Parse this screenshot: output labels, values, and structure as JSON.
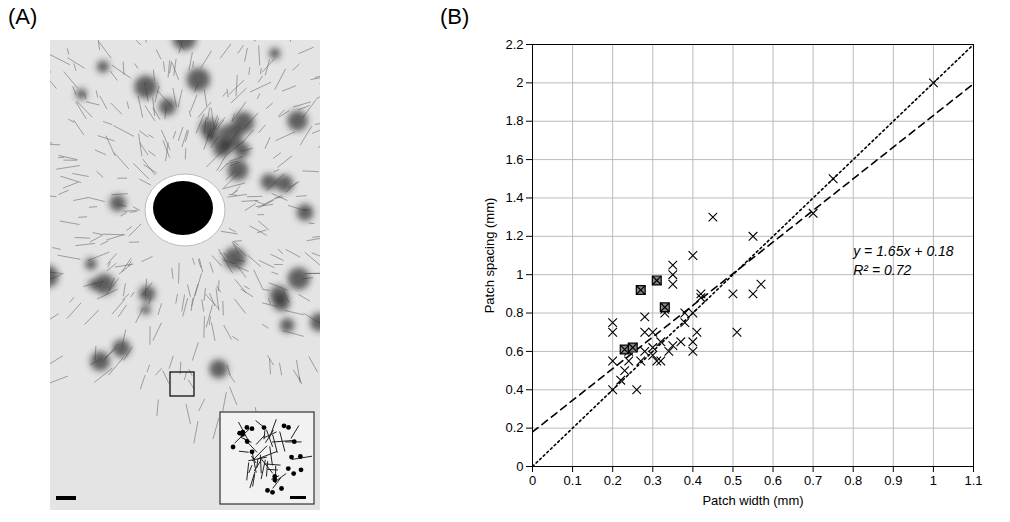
{
  "panel_labels": [
    "(A)",
    "(B)"
  ],
  "chart_data": {
    "type": "scatter",
    "x_label": "Patch width (mm)",
    "y_label": "Patch spacing (mm)",
    "xlim": [
      0,
      1.1
    ],
    "ylim": [
      0,
      2.2
    ],
    "xticks": [
      0,
      0.1,
      0.2,
      0.3,
      0.4,
      0.5,
      0.6,
      0.7,
      0.8,
      0.9,
      1,
      1.1
    ],
    "yticks": [
      0,
      0.2,
      0.4,
      0.6,
      0.8,
      1,
      1.2,
      1.4,
      1.6,
      1.8,
      2,
      2.2
    ],
    "grid": true,
    "series": [
      {
        "marker": "x",
        "color": "#000000",
        "x": [
          0.2,
          0.2,
          0.2,
          0.2,
          0.22,
          0.23,
          0.24,
          0.25,
          0.26,
          0.27,
          0.28,
          0.28,
          0.28,
          0.3,
          0.3,
          0.31,
          0.32,
          0.32,
          0.33,
          0.33,
          0.34,
          0.35,
          0.35,
          0.35,
          0.35,
          0.37,
          0.38,
          0.38,
          0.4,
          0.4,
          0.4,
          0.4,
          0.41,
          0.42,
          0.42,
          0.45,
          0.5,
          0.51,
          0.55,
          0.55,
          0.57,
          0.7,
          0.75,
          1.0,
          0.24,
          0.3
        ],
        "values": [
          0.75,
          0.7,
          0.55,
          0.4,
          0.45,
          0.5,
          0.6,
          0.62,
          0.4,
          0.55,
          0.7,
          0.78,
          0.6,
          0.62,
          0.58,
          0.55,
          0.65,
          0.55,
          0.82,
          0.8,
          0.6,
          0.63,
          0.95,
          1.05,
          1.0,
          0.65,
          0.8,
          0.75,
          0.8,
          0.65,
          0.6,
          1.1,
          0.7,
          0.88,
          0.9,
          1.3,
          0.9,
          0.7,
          1.2,
          0.9,
          0.95,
          1.32,
          1.5,
          2.0,
          0.55,
          0.7
        ]
      },
      {
        "marker": "boxed_x",
        "color": "#000000",
        "x": [
          0.23,
          0.25,
          0.27,
          0.31,
          0.33
        ],
        "values": [
          0.61,
          0.62,
          0.92,
          0.97,
          0.83
        ]
      }
    ],
    "lines": [
      {
        "line_style": "dashed",
        "color": "#000000",
        "x": [
          0,
          1.1
        ],
        "values": [
          0.18,
          1.995
        ]
      },
      {
        "line_style": "dotted",
        "color": "#000000",
        "x": [
          0,
          1.1
        ],
        "values": [
          0,
          2.2
        ]
      }
    ],
    "annotations": [
      {
        "text": "y = 1.65x + 0.18",
        "x": 0.8,
        "y": 1.12
      },
      {
        "text": "R² = 0.72",
        "x": 0.8,
        "y": 1.02
      }
    ]
  }
}
